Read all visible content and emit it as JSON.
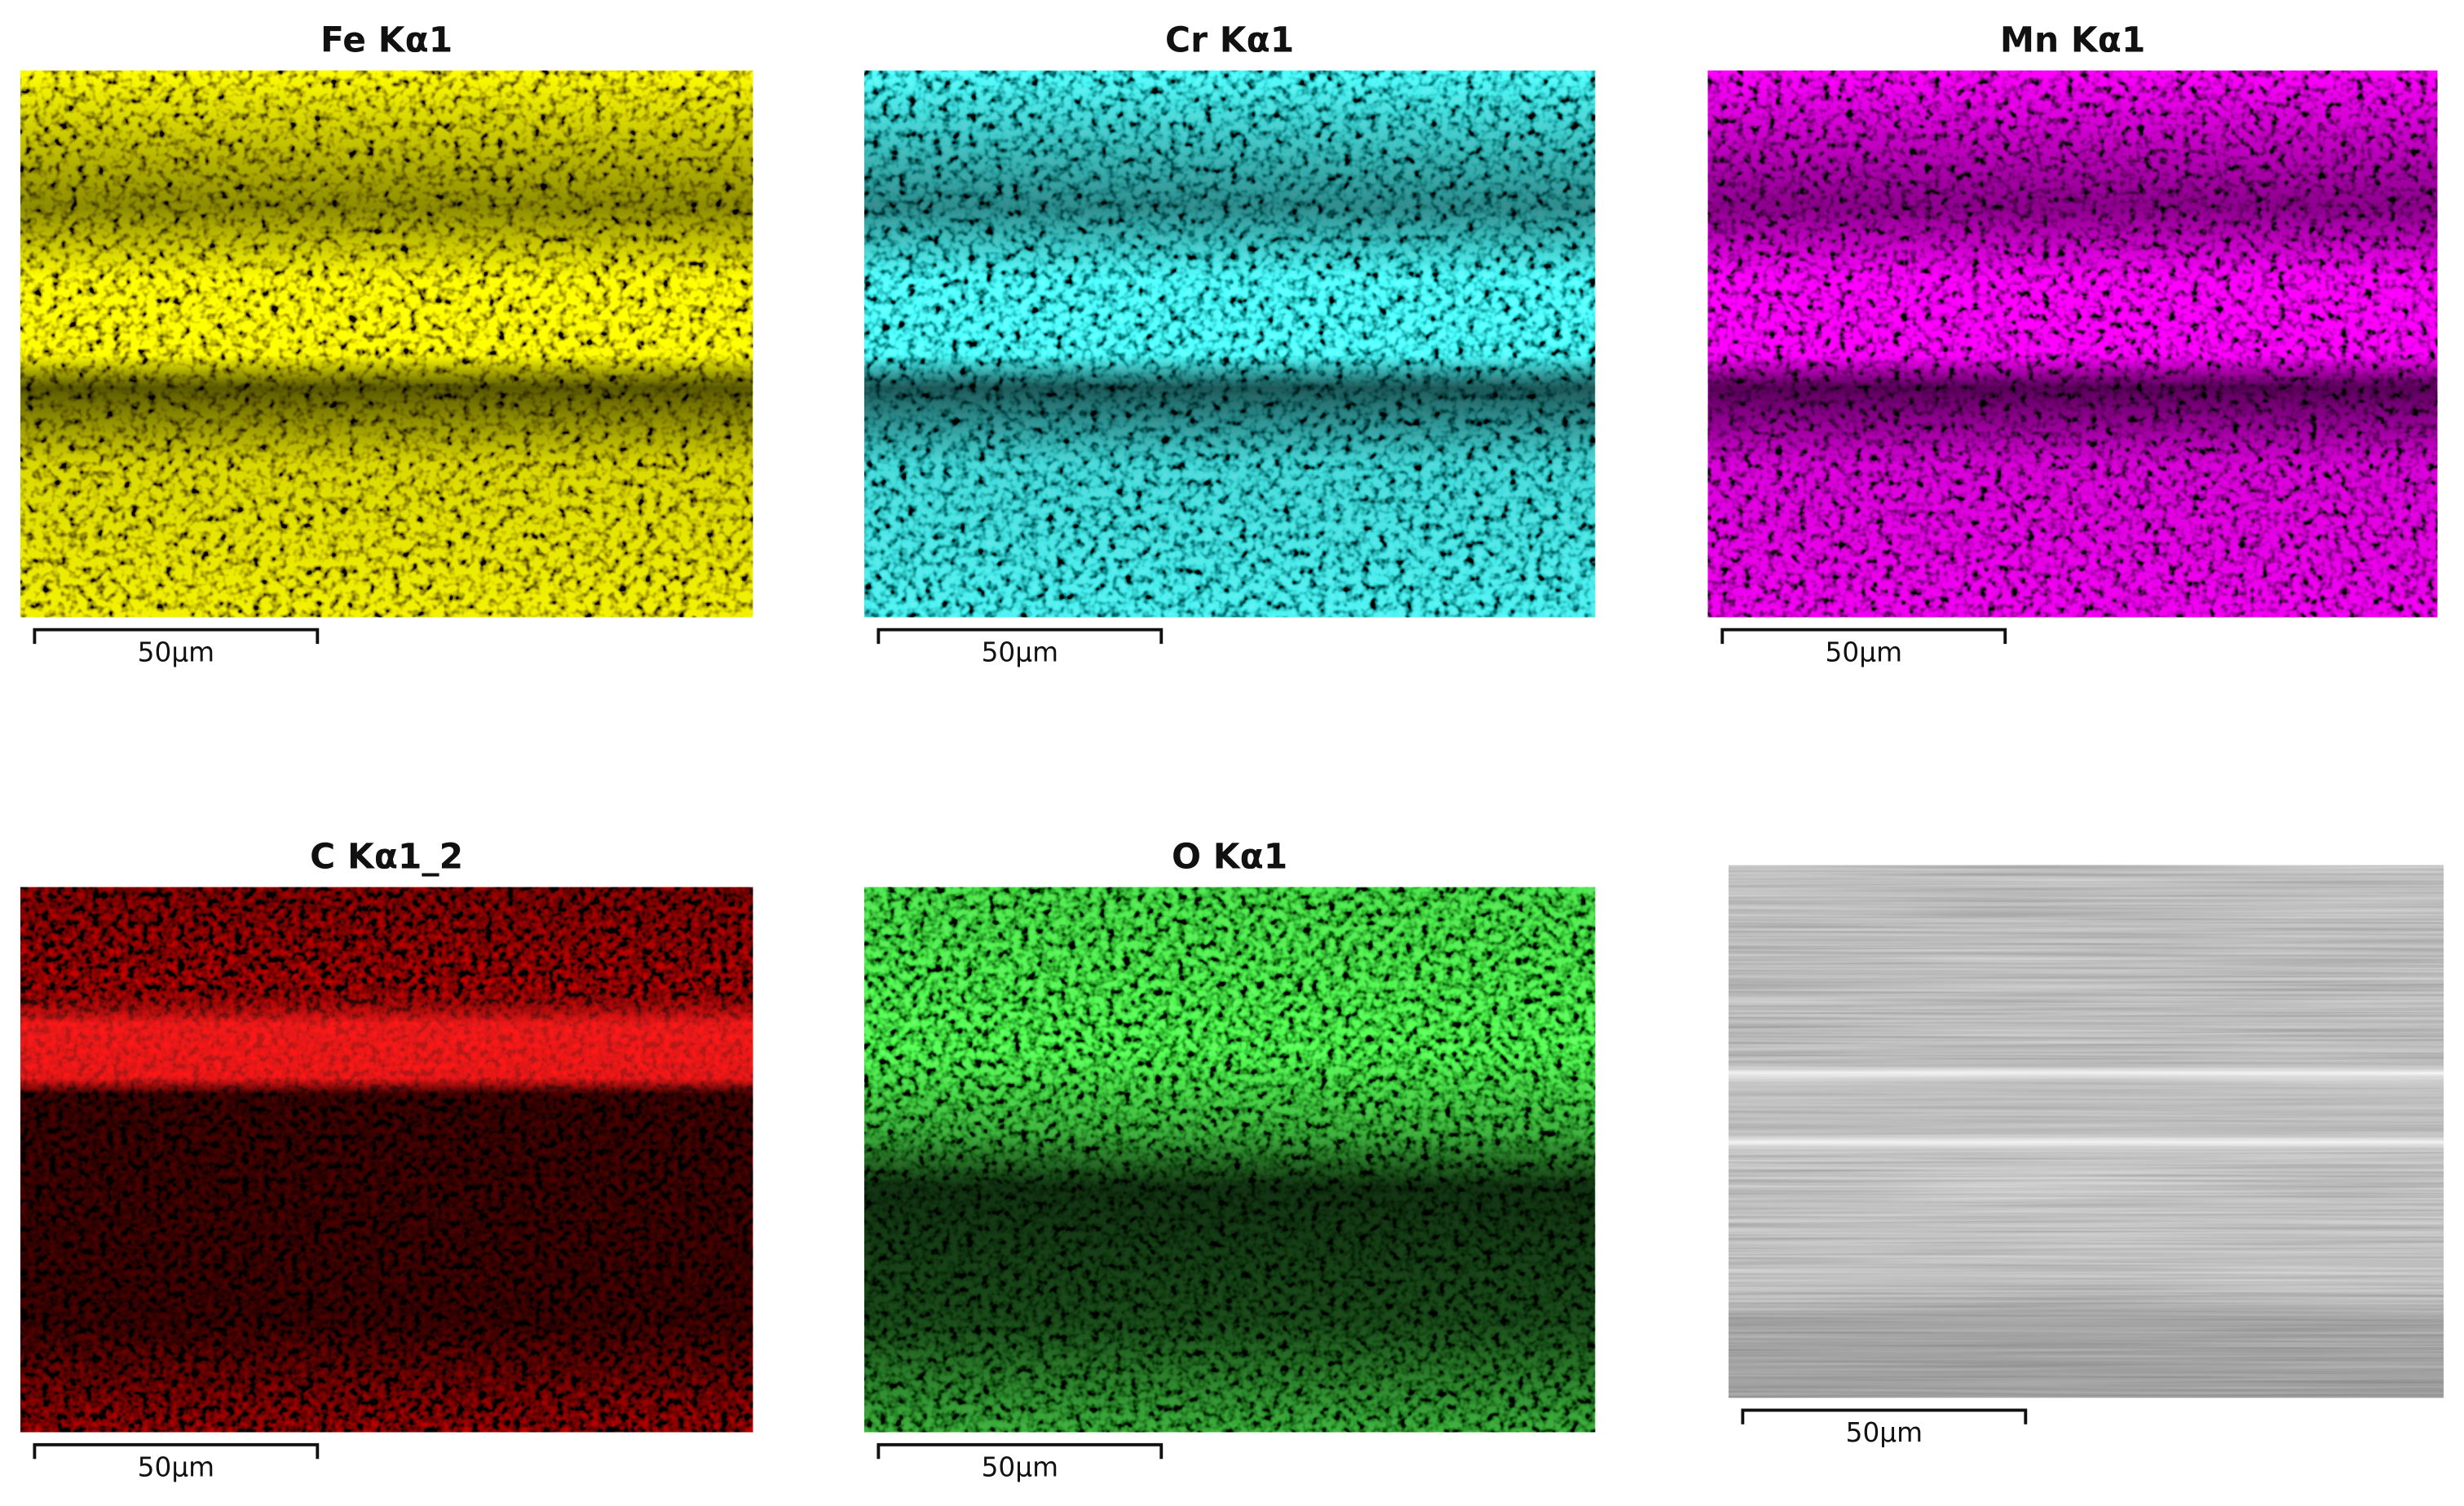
{
  "panels": [
    {
      "title": "Fe Kα1",
      "scale": "50µm"
    },
    {
      "title": "Cr Kα1",
      "scale": "50µm"
    },
    {
      "title": "Mn Kα1",
      "scale": "50µm"
    },
    {
      "title": "C Kα1_2",
      "scale": "50µm"
    },
    {
      "title": "O Kα1",
      "scale": "50µm"
    },
    {
      "scale": "50µm"
    }
  ]
}
